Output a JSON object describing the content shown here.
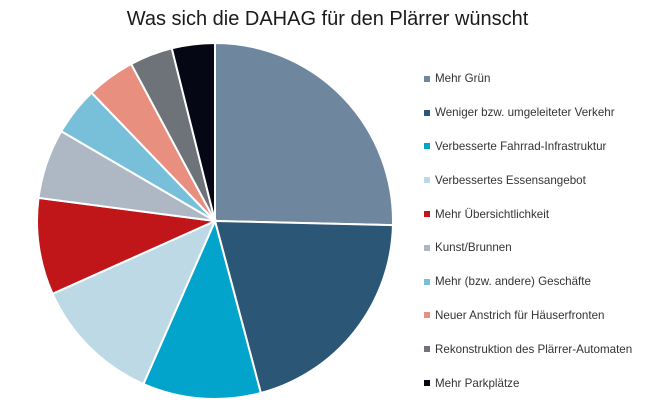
{
  "chart_data": {
    "type": "pie",
    "title": "Was sich die DAHAG für den Plärrer wünscht",
    "slices": [
      {
        "label": "Mehr Grün",
        "value": 26,
        "color": "#6f879e"
      },
      {
        "label": "Weniger bzw. umgeleiteter Verkehr",
        "value": 21,
        "color": "#2b5675"
      },
      {
        "label": "Verbesserte Fahrrad-Infrastruktur",
        "value": 11,
        "color": "#02a4cc"
      },
      {
        "label": "Verbessertes Essensangebot",
        "value": 12,
        "color": "#bcd9e5"
      },
      {
        "label": "Mehr Übersichtlichkeit",
        "value": 9,
        "color": "#c0161a"
      },
      {
        "label": "Kunst/Brunnen",
        "value": 6.5,
        "color": "#adb8c4"
      },
      {
        "label": "Mehr (bzw. andere) Geschäfte",
        "value": 4.5,
        "color": "#78bfd9"
      },
      {
        "label": "Neuer Anstrich für Häuserfronten",
        "value": 4.5,
        "color": "#e88f80"
      },
      {
        "label": "Rekonstruktion des Plärrer-Automaten",
        "value": 4,
        "color": "#6e7379"
      },
      {
        "label": "Mehr Parkplätze",
        "value": 4,
        "color": "#050814"
      }
    ],
    "start": "12 o'clock",
    "direction": "clockwise",
    "legend_position": "right"
  }
}
